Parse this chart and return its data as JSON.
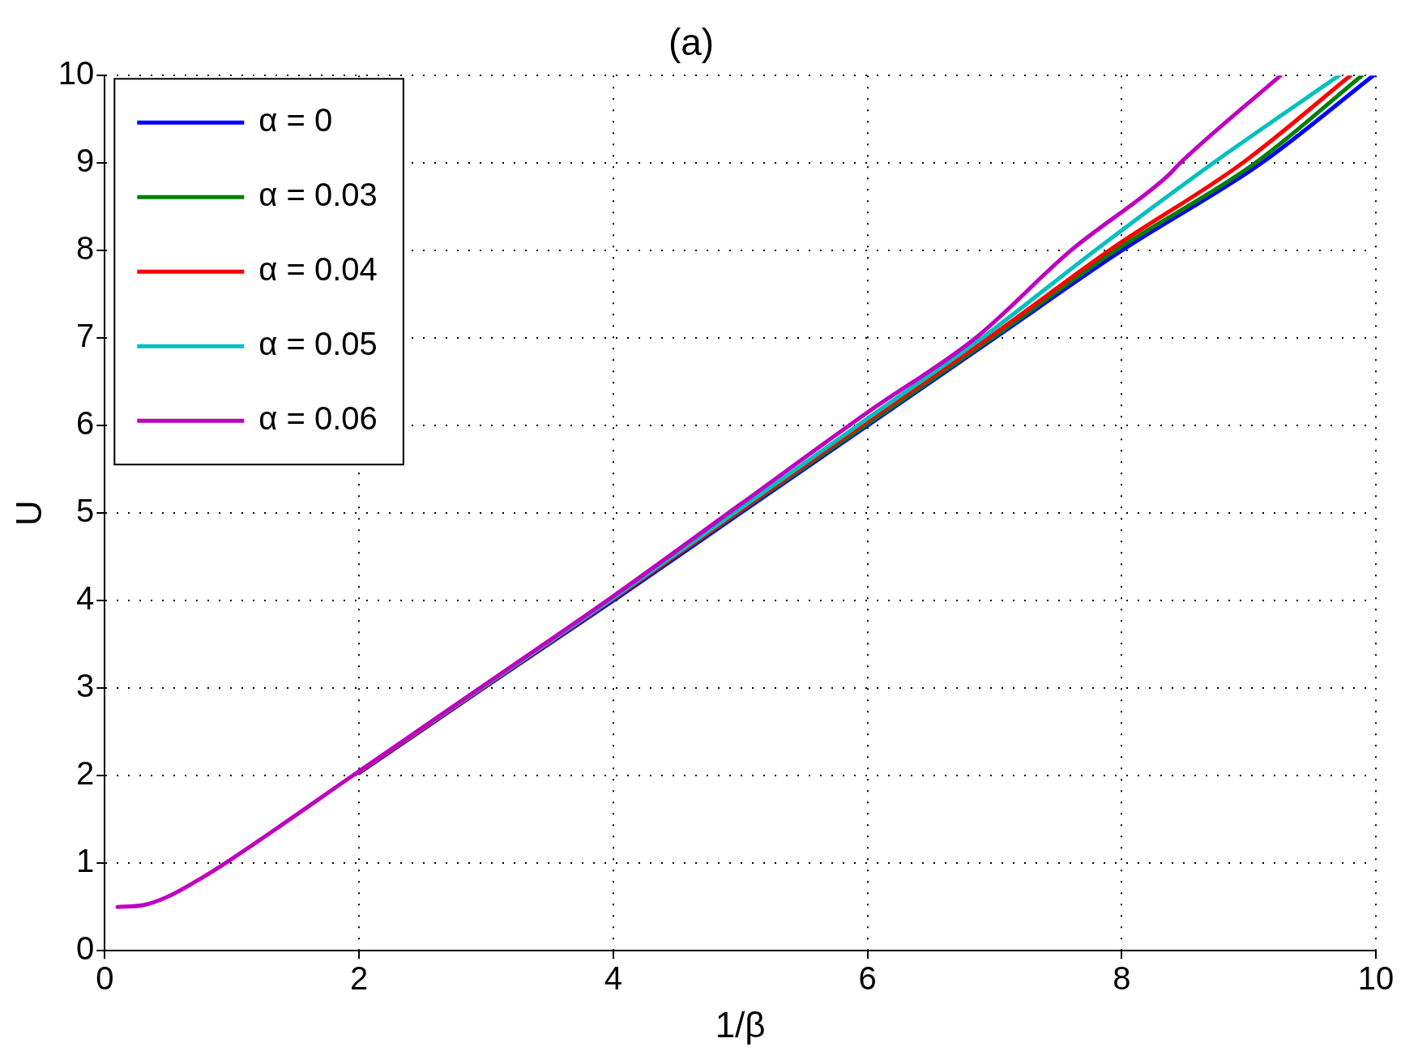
{
  "chart_data": {
    "type": "line",
    "title": "(a)",
    "xlabel": "1/β",
    "ylabel": "U",
    "xlim": [
      0,
      10
    ],
    "ylim": [
      0,
      10
    ],
    "xticks": [
      0,
      2,
      4,
      6,
      8,
      10
    ],
    "yticks": [
      0,
      1,
      2,
      3,
      4,
      5,
      6,
      7,
      8,
      9,
      10
    ],
    "grid": true,
    "legend": "top left",
    "line_style": "solid",
    "marker": "none",
    "series": [
      {
        "name": "α = 0",
        "color": "#0000ff",
        "x": [
          2,
          3,
          4,
          5,
          6,
          7,
          8,
          9.1,
          9.98
        ],
        "values": [
          2.03,
          3.02,
          4,
          5,
          6,
          7,
          8,
          9,
          10
        ]
      },
      {
        "name": "α = 0.03",
        "color": "#008000",
        "x": [
          4,
          5,
          6,
          7,
          7.95,
          9.05,
          9.89
        ],
        "values": [
          4.02,
          5.02,
          6.02,
          7.02,
          8,
          9,
          10
        ]
      },
      {
        "name": "α = 0.04",
        "color": "#ff0000",
        "x": [
          2,
          3,
          4,
          5,
          6,
          7,
          7.9,
          8.95,
          9.8
        ],
        "values": [
          2.04,
          3.03,
          4.02,
          5.03,
          6.05,
          7.05,
          8,
          9,
          10
        ]
      },
      {
        "name": "α = 0.05",
        "color": "#00bfbf",
        "x": [
          2,
          3,
          4,
          5,
          6,
          6.9,
          7.79,
          8.72,
          9.71
        ],
        "values": [
          2.05,
          3.04,
          4.03,
          5.05,
          6.08,
          7,
          8,
          9,
          10
        ]
      },
      {
        "name": "α = 0.06",
        "color": "#bf00bf",
        "x": [
          0.1,
          0.3,
          0.5,
          0.75,
          1,
          2,
          3,
          4,
          5,
          6,
          6.85,
          7.6,
          8.36,
          8.46,
          9.25
        ],
        "values": [
          0.5,
          0.52,
          0.62,
          0.82,
          1.05,
          2.05,
          3.05,
          4.05,
          5.1,
          6.15,
          7,
          8,
          8.85,
          9,
          10
        ]
      }
    ]
  }
}
